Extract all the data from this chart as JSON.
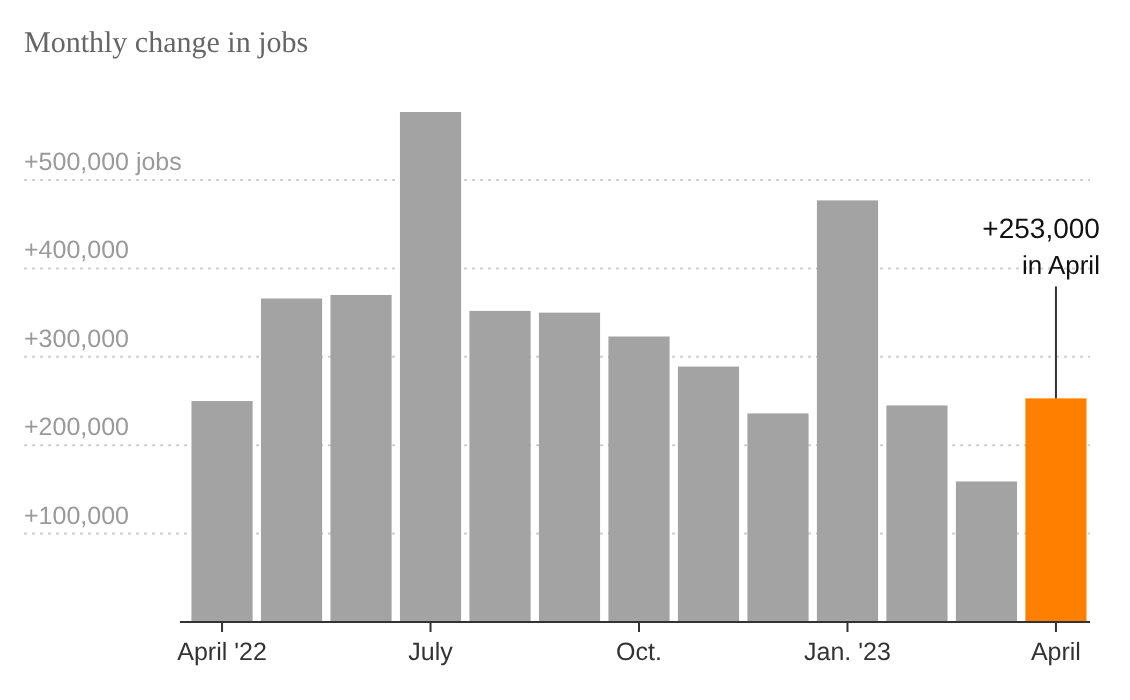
{
  "chart_data": {
    "type": "bar",
    "title": "Monthly change in jobs",
    "categories": [
      "April '22",
      null,
      null,
      "July",
      null,
      null,
      "Oct.",
      null,
      null,
      "Jan. '23",
      null,
      null,
      "April"
    ],
    "values": [
      250000,
      366000,
      370000,
      577000,
      352000,
      350000,
      323000,
      289000,
      236000,
      477000,
      245000,
      159000,
      253000
    ],
    "colors": [
      "#a3a3a3",
      "#a3a3a3",
      "#a3a3a3",
      "#a3a3a3",
      "#a3a3a3",
      "#a3a3a3",
      "#a3a3a3",
      "#a3a3a3",
      "#a3a3a3",
      "#a3a3a3",
      "#a3a3a3",
      "#a3a3a3",
      "#ff7f00"
    ],
    "yticks": [
      {
        "value": 100000,
        "label": "+100,000"
      },
      {
        "value": 200000,
        "label": "+200,000"
      },
      {
        "value": 300000,
        "label": "+300,000"
      },
      {
        "value": 400000,
        "label": "+400,000"
      },
      {
        "value": 500000,
        "label": "+500,000 jobs"
      }
    ],
    "ylim": [
      0,
      577000
    ],
    "grid": "y",
    "annotations": [
      {
        "text": "+253,000 in April",
        "x": "April",
        "y": 253000
      }
    ]
  }
}
